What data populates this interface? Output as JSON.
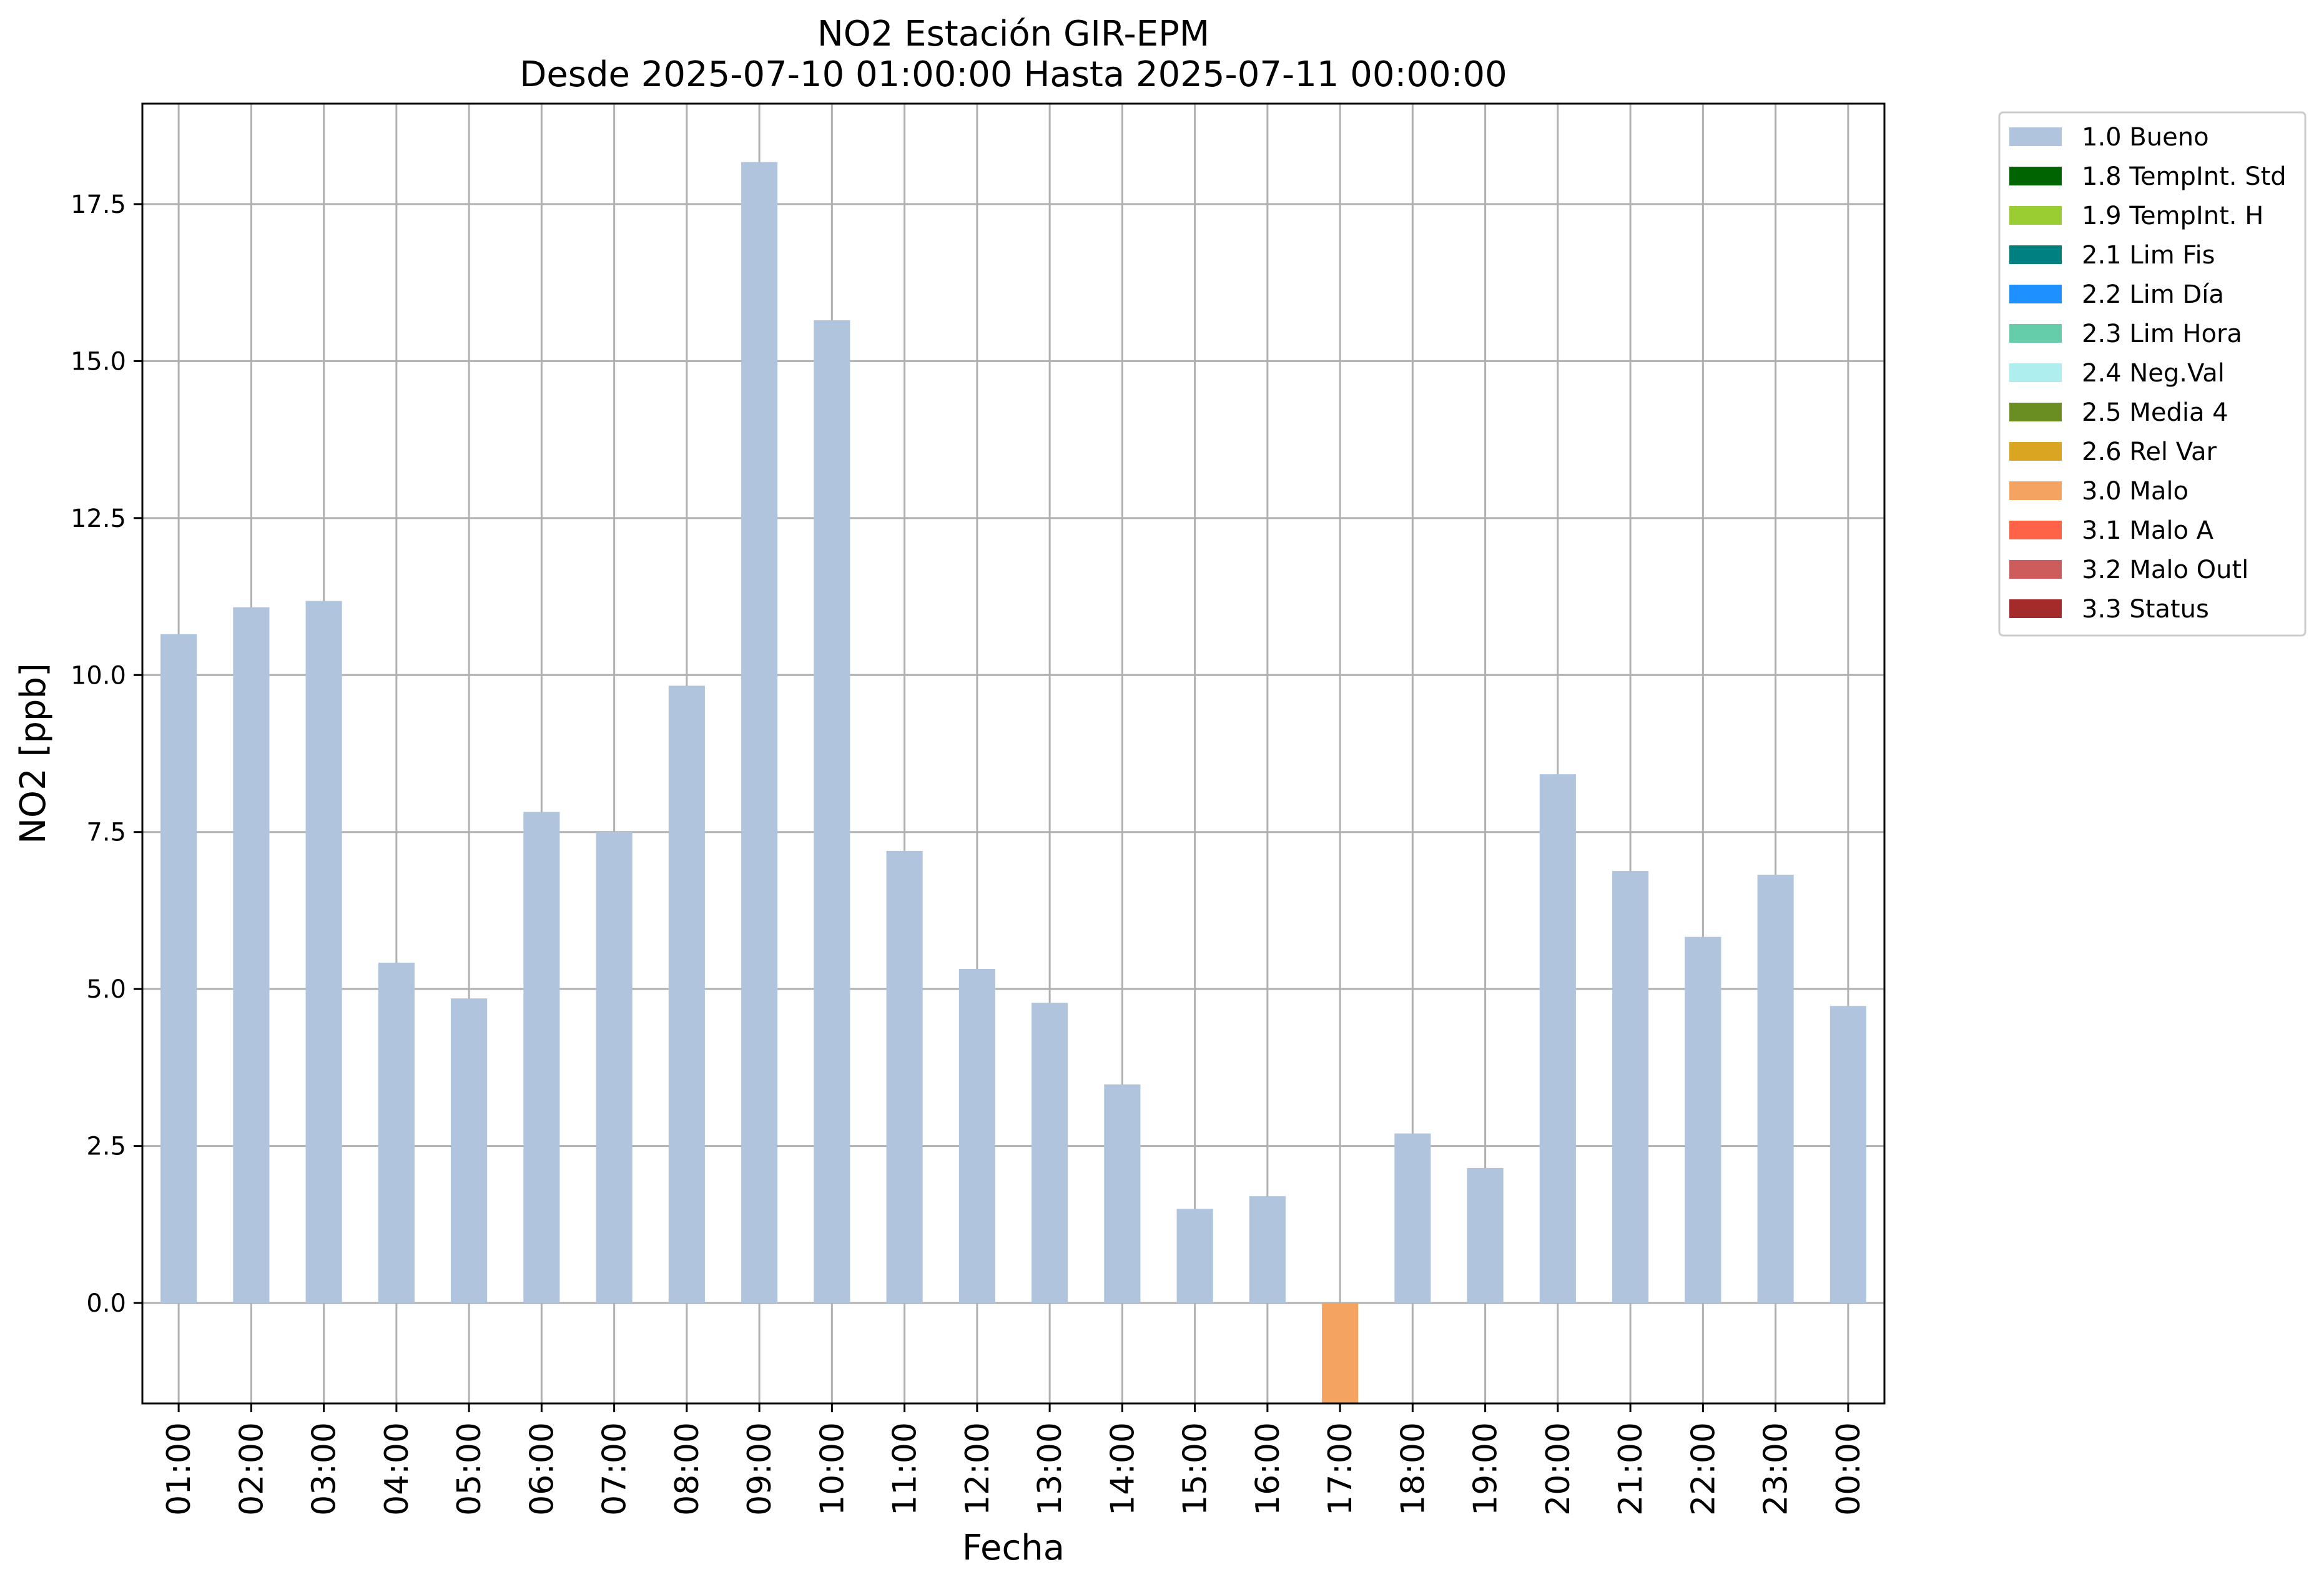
{
  "chart_data": {
    "type": "bar",
    "title": "NO2 Estación GIR-EPM",
    "subtitle": "Desde 2025-07-10 01:00:00 Hasta 2025-07-11 00:00:00",
    "xlabel": "Fecha",
    "ylabel": "NO2 [ppb]",
    "ylim": [
      -1.6,
      19.1
    ],
    "yticks": [
      0.0,
      2.5,
      5.0,
      7.5,
      10.0,
      12.5,
      15.0,
      17.5
    ],
    "ytick_labels": [
      "0.0",
      "2.5",
      "5.0",
      "7.5",
      "10.0",
      "12.5",
      "15.0",
      "17.5"
    ],
    "grid": true,
    "legend_position": "outside-top-right",
    "categories": [
      "01:00",
      "02:00",
      "03:00",
      "04:00",
      "05:00",
      "06:00",
      "07:00",
      "08:00",
      "09:00",
      "10:00",
      "11:00",
      "12:00",
      "13:00",
      "14:00",
      "15:00",
      "16:00",
      "17:00",
      "18:00",
      "19:00",
      "20:00",
      "21:00",
      "22:00",
      "23:00",
      "00:00"
    ],
    "values": [
      10.65,
      11.08,
      11.18,
      5.42,
      4.85,
      7.82,
      7.5,
      9.83,
      18.17,
      15.65,
      7.2,
      5.32,
      4.78,
      3.48,
      1.5,
      1.7,
      -1.6,
      2.7,
      2.15,
      8.42,
      6.88,
      5.83,
      6.82,
      4.73
    ],
    "flags": [
      "1.0 Bueno",
      "1.0 Bueno",
      "1.0 Bueno",
      "1.0 Bueno",
      "1.0 Bueno",
      "1.0 Bueno",
      "1.0 Bueno",
      "1.0 Bueno",
      "1.0 Bueno",
      "1.0 Bueno",
      "1.0 Bueno",
      "1.0 Bueno",
      "1.0 Bueno",
      "1.0 Bueno",
      "1.0 Bueno",
      "1.0 Bueno",
      "3.0 Malo",
      "1.0 Bueno",
      "1.0 Bueno",
      "1.0 Bueno",
      "1.0 Bueno",
      "1.0 Bueno",
      "1.0 Bueno",
      "1.0 Bueno"
    ],
    "legend": [
      {
        "label": "1.0 Bueno",
        "color": "#b0c4de"
      },
      {
        "label": "1.8 TempInt. Std",
        "color": "#006400"
      },
      {
        "label": "1.9 TempInt. H",
        "color": "#9acd32"
      },
      {
        "label": "2.1 Lim Fis",
        "color": "#008080"
      },
      {
        "label": "2.2 Lim Día",
        "color": "#1e90ff"
      },
      {
        "label": "2.3 Lim Hora",
        "color": "#66cdaa"
      },
      {
        "label": "2.4 Neg.Val",
        "color": "#afeeee"
      },
      {
        "label": "2.5 Media 4",
        "color": "#6b8e23"
      },
      {
        "label": "2.6 Rel Var",
        "color": "#daa520"
      },
      {
        "label": "3.0 Malo",
        "color": "#f4a460"
      },
      {
        "label": "3.1 Malo A",
        "color": "#ff6347"
      },
      {
        "label": "3.2 Malo Outl",
        "color": "#cd5c5c"
      },
      {
        "label": "3.3 Status",
        "color": "#a52a2a"
      }
    ]
  }
}
